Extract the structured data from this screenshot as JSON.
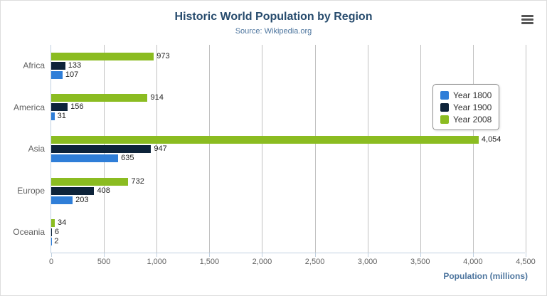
{
  "chart_data": {
    "type": "bar",
    "orientation": "horizontal",
    "title": "Historic World Population by Region",
    "subtitle": "Source: Wikipedia.org",
    "xlabel": "Population (millions)",
    "categories": [
      "Africa",
      "America",
      "Asia",
      "Europe",
      "Oceania"
    ],
    "series": [
      {
        "name": "Year 1800",
        "color": "#2f7ed8",
        "values": [
          107,
          31,
          635,
          203,
          2
        ]
      },
      {
        "name": "Year 1900",
        "color": "#0d233a",
        "values": [
          133,
          156,
          947,
          408,
          6
        ]
      },
      {
        "name": "Year 2008",
        "color": "#8bbc21",
        "values": [
          973,
          914,
          4054,
          732,
          34
        ]
      }
    ],
    "xlim": [
      0,
      4500
    ],
    "tick_interval": 500,
    "tick_labels": [
      "0",
      "500",
      "1,000",
      "1,500",
      "2,000",
      "2,500",
      "3,000",
      "3,500",
      "4,000",
      "4,500"
    ],
    "grid": true,
    "legend_position": "right-floating",
    "series_draw_order_top_to_bottom": [
      "Year 2008",
      "Year 1900",
      "Year 1800"
    ],
    "data_labels_visible": true
  },
  "colors": {
    "title": "#274b6d",
    "subtitle": "#4d759e",
    "axis_title": "#4d759e",
    "tick_label": "#606060",
    "grid_line": "#c0c0c0",
    "axis_line": "#c0d0e0",
    "data_label": "#222222",
    "legend_border": "#909090",
    "legend_text": "#333333"
  }
}
